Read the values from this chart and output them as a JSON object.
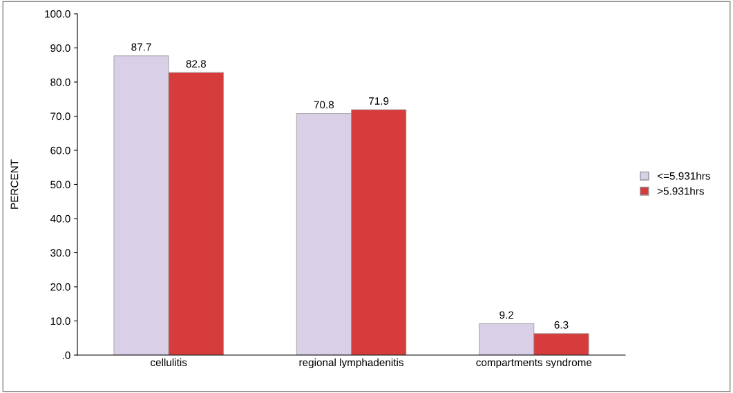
{
  "chart_data": {
    "type": "bar",
    "ylabel": "PERCENT",
    "categories": [
      "cellulitis",
      "regional lymphadenitis",
      "compartments syndrome"
    ],
    "series": [
      {
        "name": "<=5.931hrs",
        "color": "#d9d0e8",
        "values": [
          87.7,
          70.8,
          9.2
        ]
      },
      {
        "name": ">5.931hrs",
        "color": "#d63c3c",
        "values": [
          82.8,
          71.9,
          6.3
        ]
      }
    ],
    "ylim": [
      0,
      100
    ],
    "yticks": [
      {
        "value": 0,
        "label": ".0"
      },
      {
        "value": 10,
        "label": "10.0"
      },
      {
        "value": 20,
        "label": "20.0"
      },
      {
        "value": 30,
        "label": "30.0"
      },
      {
        "value": 40,
        "label": "40.0"
      },
      {
        "value": 50,
        "label": "50.0"
      },
      {
        "value": 60,
        "label": "60.0"
      },
      {
        "value": 70,
        "label": "70.0"
      },
      {
        "value": 80,
        "label": "80.0"
      },
      {
        "value": 90,
        "label": "90.0"
      },
      {
        "value": 100,
        "label": "100.0"
      }
    ],
    "data_labels": true,
    "legend": "right",
    "grid": false
  }
}
